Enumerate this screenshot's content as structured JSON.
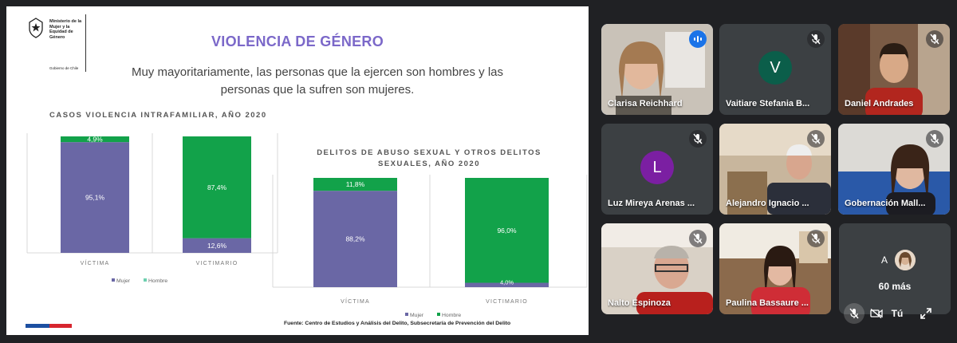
{
  "slide": {
    "logo": {
      "org_text": "Ministerio de la Mujer y la Equidad de Género",
      "gov_text": "Gobierno de Chile"
    },
    "title": "VIOLENCIA DE GÉNERO",
    "subtitle": "Muy mayoritariamente, las personas que la ejercen son hombres y las personas que la sufren son mujeres.",
    "source": "Fuente: Centro de Estudios y Análisis del Delito, Subsecretaría de Prevención del Delito",
    "colors": {
      "mujer": "#6a67a5",
      "hombre": "#12a24a",
      "title": "#7b68c9",
      "legend_hombre": "#6fd0b0"
    }
  },
  "chart_data": [
    {
      "type": "bar",
      "stacked": true,
      "title": "CASOS VIOLENCIA INTRAFAMILIAR, AÑO 2020",
      "categories": [
        "VÍCTIMA",
        "VICTIMARIO"
      ],
      "series": [
        {
          "name": "Mujer",
          "values": [
            95.1,
            12.6
          ],
          "labels": [
            "95,1%",
            "12,6%"
          ]
        },
        {
          "name": "Hombre",
          "values": [
            4.9,
            87.4
          ],
          "labels": [
            "4,9%",
            "87,4%"
          ]
        }
      ],
      "ylim": [
        0,
        100
      ],
      "legend_position": "bottom"
    },
    {
      "type": "bar",
      "stacked": true,
      "title": "DELITOS DE ABUSO SEXUAL Y OTROS DELITOS SEXUALES, AÑO 2020",
      "title_lines": [
        "DELITOS DE ABUSO SEXUAL Y OTROS DELITOS",
        "SEXUALES, AÑO 2020"
      ],
      "categories": [
        "VÍCTIMA",
        "VICTIMARIO"
      ],
      "series": [
        {
          "name": "Mujer",
          "values": [
            88.2,
            4.0
          ],
          "labels": [
            "88,2%",
            "4,0%"
          ]
        },
        {
          "name": "Hombre",
          "values": [
            11.8,
            96.0
          ],
          "labels": [
            "11,8%",
            "96,0%"
          ]
        }
      ],
      "ylim": [
        0,
        100
      ],
      "legend_position": "bottom"
    }
  ],
  "participants": [
    {
      "name": "Clarisa Reichhard",
      "speaking": true,
      "muted": false
    },
    {
      "name": "Vaitiare Stefania B...",
      "speaking": false,
      "muted": true,
      "initial": "V",
      "avatar_color": "#0b5e4a"
    },
    {
      "name": "Daniel Andrades",
      "speaking": false,
      "muted": true
    },
    {
      "name": "Luz Mireya Arenas ...",
      "speaking": false,
      "muted": true,
      "initial": "L",
      "avatar_color": "#7b1fa2"
    },
    {
      "name": "Alejandro Ignacio ...",
      "speaking": false,
      "muted": true
    },
    {
      "name": "Gobernación Mall...",
      "speaking": false,
      "muted": true
    },
    {
      "name": "Nalto Espinoza",
      "speaking": false,
      "muted": true
    },
    {
      "name": "Paulina Bassaure ...",
      "speaking": false,
      "muted": true
    }
  ],
  "more_tile": {
    "initial": "A",
    "avatar_color": "#e8335f",
    "count_label": "60 más",
    "self_label": "Tú"
  }
}
